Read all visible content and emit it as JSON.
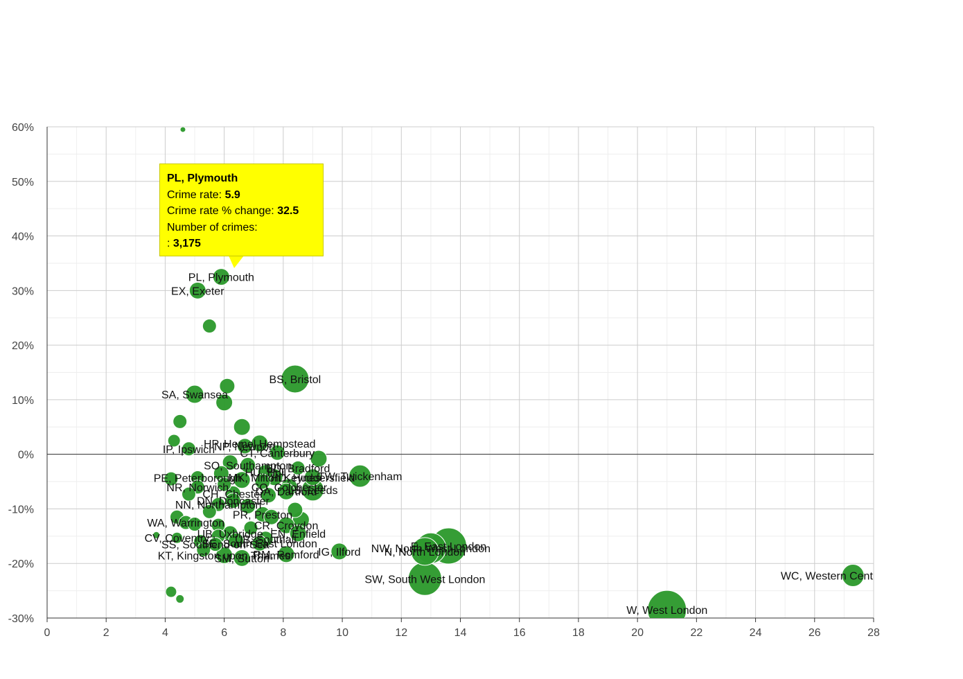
{
  "chart_data": {
    "type": "scatter",
    "bubble": true,
    "title": "",
    "xlabel": "",
    "ylabel": "",
    "xlim": [
      0,
      28
    ],
    "ylim": [
      -30,
      60
    ],
    "x_ticks": [
      "0",
      "2",
      "4",
      "6",
      "8",
      "10",
      "12",
      "14",
      "16",
      "18",
      "20",
      "22",
      "24",
      "26",
      "28"
    ],
    "y_ticks": [
      "60%",
      "50%",
      "40%",
      "30%",
      "20%",
      "10%",
      "0%",
      "-10%",
      "-20%",
      "-30%"
    ],
    "grid": true,
    "bubble_color": "#2e9a2e",
    "points": [
      {
        "x": 4.6,
        "y": 59.5,
        "size": 4,
        "label": ""
      },
      {
        "x": 5.9,
        "y": 32.5,
        "size": 12,
        "label": "PL, Plymouth"
      },
      {
        "x": 5.1,
        "y": 30.0,
        "size": 12,
        "label": "EX, Exeter"
      },
      {
        "x": 5.5,
        "y": 23.5,
        "size": 10,
        "label": ""
      },
      {
        "x": 8.4,
        "y": 13.8,
        "size": 20,
        "label": "BS, Bristol"
      },
      {
        "x": 6.1,
        "y": 12.5,
        "size": 11,
        "label": ""
      },
      {
        "x": 5.0,
        "y": 11.0,
        "size": 13,
        "label": "SA, Swansea"
      },
      {
        "x": 6.0,
        "y": 9.5,
        "size": 12,
        "label": ""
      },
      {
        "x": 4.5,
        "y": 6.0,
        "size": 10,
        "label": ""
      },
      {
        "x": 6.6,
        "y": 5.0,
        "size": 12,
        "label": ""
      },
      {
        "x": 4.3,
        "y": 2.5,
        "size": 9,
        "label": ""
      },
      {
        "x": 7.2,
        "y": 2.0,
        "size": 12,
        "label": "HP, Hemel Hempstead"
      },
      {
        "x": 6.7,
        "y": 1.5,
        "size": 11,
        "label": "NP, Newport"
      },
      {
        "x": 4.8,
        "y": 1.0,
        "size": 10,
        "label": "IP, Ipswich"
      },
      {
        "x": 7.8,
        "y": 0.3,
        "size": 11,
        "label": "CT, Canterbury"
      },
      {
        "x": 9.2,
        "y": -0.8,
        "size": 12,
        "label": ""
      },
      {
        "x": 6.2,
        "y": -1.5,
        "size": 11,
        "label": ""
      },
      {
        "x": 6.8,
        "y": -2.0,
        "size": 11,
        "label": "SO, Southampton"
      },
      {
        "x": 8.5,
        "y": -2.5,
        "size": 10,
        "label": "BD, Bradford"
      },
      {
        "x": 7.4,
        "y": -3.3,
        "size": 11,
        "label": "HU, Hull"
      },
      {
        "x": 5.9,
        "y": -3.5,
        "size": 11,
        "label": ""
      },
      {
        "x": 10.6,
        "y": -4.0,
        "size": 16,
        "label": "TW, Twickenham"
      },
      {
        "x": 7.7,
        "y": -4.2,
        "size": 12,
        "label": "MK, Milton Keynes"
      },
      {
        "x": 9.0,
        "y": -4.2,
        "size": 12,
        "label": "HD, Huddersfield"
      },
      {
        "x": 5.1,
        "y": -4.3,
        "size": 10,
        "label": "PE, Peterborough"
      },
      {
        "x": 4.2,
        "y": -4.5,
        "size": 10,
        "label": ""
      },
      {
        "x": 6.6,
        "y": -4.7,
        "size": 12,
        "label": ""
      },
      {
        "x": 7.3,
        "y": -5.0,
        "size": 11,
        "label": ""
      },
      {
        "x": 6.0,
        "y": -5.5,
        "size": 10,
        "label": ""
      },
      {
        "x": 8.2,
        "y": -6.0,
        "size": 12,
        "label": "CO, Colchester"
      },
      {
        "x": 5.1,
        "y": -6.0,
        "size": 10,
        "label": "NR, Norwich"
      },
      {
        "x": 9.0,
        "y": -6.5,
        "size": 16,
        "label": "LS, Leeds"
      },
      {
        "x": 8.1,
        "y": -6.8,
        "size": 12,
        "label": "DA, Dartford"
      },
      {
        "x": 6.3,
        "y": -7.2,
        "size": 11,
        "label": "CH, Chester"
      },
      {
        "x": 4.8,
        "y": -7.3,
        "size": 10,
        "label": ""
      },
      {
        "x": 7.5,
        "y": -7.5,
        "size": 11,
        "label": ""
      },
      {
        "x": 6.3,
        "y": -8.5,
        "size": 11,
        "label": "DN, Doncaster"
      },
      {
        "x": 5.8,
        "y": -9.2,
        "size": 10,
        "label": "NN, Northampton"
      },
      {
        "x": 6.8,
        "y": -9.5,
        "size": 11,
        "label": ""
      },
      {
        "x": 8.4,
        "y": -10.2,
        "size": 11,
        "label": ""
      },
      {
        "x": 5.5,
        "y": -10.5,
        "size": 10,
        "label": ""
      },
      {
        "x": 7.3,
        "y": -11.0,
        "size": 11,
        "label": "PR, Preston"
      },
      {
        "x": 7.6,
        "y": -11.5,
        "size": 11,
        "label": ""
      },
      {
        "x": 4.4,
        "y": -11.5,
        "size": 10,
        "label": ""
      },
      {
        "x": 8.6,
        "y": -12.0,
        "size": 12,
        "label": ""
      },
      {
        "x": 4.7,
        "y": -12.5,
        "size": 10,
        "label": "WA, Warrington"
      },
      {
        "x": 5.0,
        "y": -12.8,
        "size": 10,
        "label": ""
      },
      {
        "x": 8.1,
        "y": -13.0,
        "size": 12,
        "label": "CR, Croydon"
      },
      {
        "x": 5.8,
        "y": -13.0,
        "size": 10,
        "label": ""
      },
      {
        "x": 6.9,
        "y": -13.5,
        "size": 10,
        "label": ""
      },
      {
        "x": 8.5,
        "y": -14.5,
        "size": 12,
        "label": "EN, Enfield"
      },
      {
        "x": 6.2,
        "y": -14.5,
        "size": 11,
        "label": "UB, Uxbridge"
      },
      {
        "x": 3.7,
        "y": -14.8,
        "size": 5,
        "label": ""
      },
      {
        "x": 5.8,
        "y": -15.0,
        "size": 10,
        "label": ""
      },
      {
        "x": 4.4,
        "y": -15.3,
        "size": 8,
        "label": "CV, Coventry"
      },
      {
        "x": 7.4,
        "y": -15.5,
        "size": 11,
        "label": "UB, Southall"
      },
      {
        "x": 6.4,
        "y": -15.8,
        "size": 11,
        "label": ""
      },
      {
        "x": 5.2,
        "y": -16.0,
        "size": 10,
        "label": ""
      },
      {
        "x": 7.2,
        "y": -16.3,
        "size": 11,
        "label": "SE, South East London"
      },
      {
        "x": 5.7,
        "y": -16.5,
        "size": 10,
        "label": "SS, Southend-on-Sea"
      },
      {
        "x": 13.6,
        "y": -16.8,
        "size": 26,
        "label": "E, East London"
      },
      {
        "x": 13.0,
        "y": -17.2,
        "size": 22,
        "label": "NW, North West London"
      },
      {
        "x": 12.8,
        "y": -17.8,
        "size": 20,
        "label": "N, North London"
      },
      {
        "x": 5.3,
        "y": -17.5,
        "size": 10,
        "label": ""
      },
      {
        "x": 9.9,
        "y": -17.8,
        "size": 12,
        "label": "IG, Ilford"
      },
      {
        "x": 8.1,
        "y": -18.3,
        "size": 12,
        "label": "RM, Romford"
      },
      {
        "x": 6.0,
        "y": -18.5,
        "size": 12,
        "label": "KT, Kingston upon Thames"
      },
      {
        "x": 6.6,
        "y": -19.0,
        "size": 12,
        "label": "SM, Sutton"
      },
      {
        "x": 12.8,
        "y": -22.8,
        "size": 24,
        "label": "SW, South West London"
      },
      {
        "x": 27.3,
        "y": -22.2,
        "size": 16,
        "label": "WC, Western Central London"
      },
      {
        "x": 4.2,
        "y": -25.2,
        "size": 8,
        "label": ""
      },
      {
        "x": 4.5,
        "y": -26.5,
        "size": 6,
        "label": ""
      },
      {
        "x": 21.0,
        "y": -28.5,
        "size": 28,
        "label": "W, West London"
      }
    ]
  },
  "tooltip": {
    "title": "PL, Plymouth",
    "crime_rate_label": "Crime rate:",
    "crime_rate_value": "5.9",
    "change_label": "Crime rate % change:",
    "change_value": "32.5",
    "count_label": "Number of crimes:",
    "count_prefix": ":",
    "count_value": "3,175"
  }
}
